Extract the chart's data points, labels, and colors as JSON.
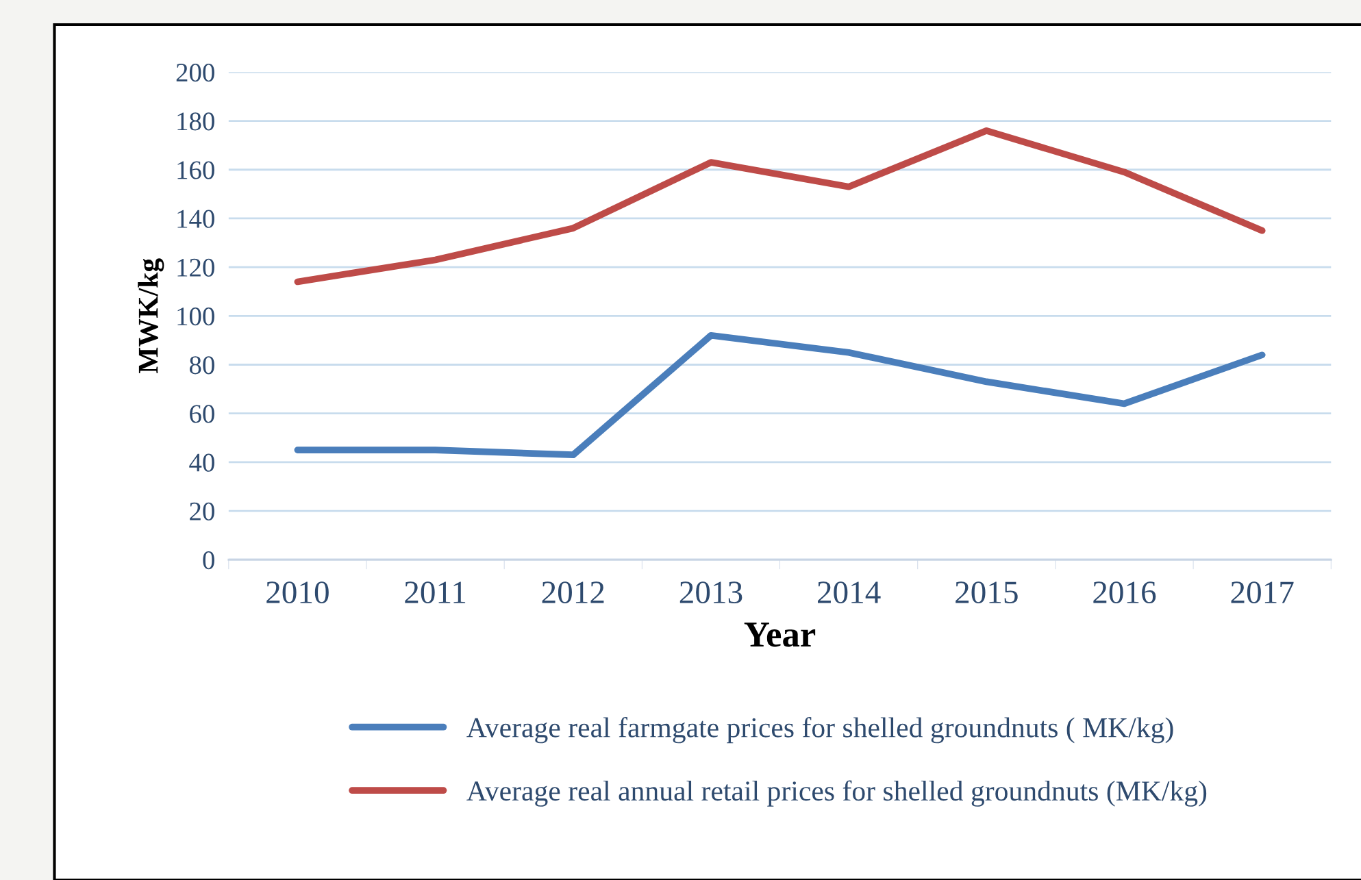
{
  "chart_data": {
    "type": "line",
    "xlabel": "Year",
    "ylabel": "MWK/kg",
    "categories": [
      "2010",
      "2011",
      "2012",
      "2013",
      "2014",
      "2015",
      "2016",
      "2017"
    ],
    "series": [
      {
        "name": "Average real farmgate prices for shelled groundnuts ( MK/kg)",
        "color": "#4a7ebb",
        "values": [
          45,
          45,
          43,
          92,
          85,
          73,
          64,
          84
        ]
      },
      {
        "name": "Average real annual retail prices for shelled groundnuts (MK/kg)",
        "color": "#be4b48",
        "values": [
          114,
          123,
          136,
          163,
          153,
          176,
          159,
          135
        ]
      }
    ],
    "ylim": [
      0,
      200
    ],
    "yticks": [
      0,
      20,
      40,
      60,
      80,
      100,
      120,
      140,
      160,
      180,
      200
    ],
    "grid": "y",
    "legend": "bottom",
    "marker": "none",
    "line_style": "solid"
  }
}
